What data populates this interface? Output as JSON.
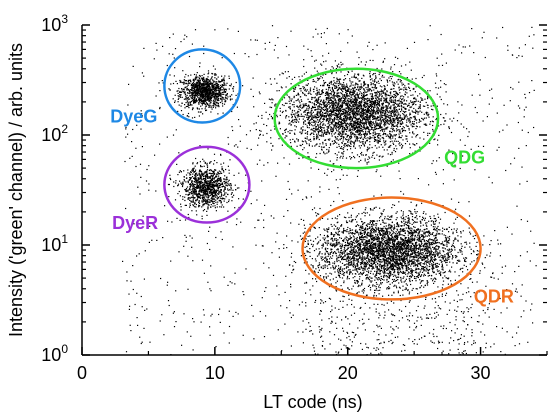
{
  "chart_data": {
    "type": "scatter",
    "xlabel": "LT code (ns)",
    "ylabel": "Intensity ('green' channel) / arb. units",
    "xlim": [
      0,
      35
    ],
    "ylim": [
      1,
      1000
    ],
    "yscale": "log",
    "x_ticks": [
      0,
      10,
      20,
      30
    ],
    "x_tick_labels": [
      "0",
      "10",
      "20",
      "30"
    ],
    "y_ticks": [
      1,
      10,
      100,
      1000
    ],
    "y_tick_mantissa": "10",
    "y_tick_exponents": [
      "0",
      "1",
      "2",
      "3"
    ],
    "point_color": "#000000",
    "grid": false,
    "clusters": [
      {
        "name": "DyeG",
        "center_x": 9.2,
        "center_y": 250,
        "spread_x": 0.9,
        "spread_y_log": 0.07,
        "color": "#1e88e5",
        "ellipse": {
          "cx": 9.0,
          "cy": 250,
          "x_range": [
            6.2,
            11.9
          ],
          "y_range": [
            130,
            600
          ]
        }
      },
      {
        "name": "QDG",
        "center_x": 20.5,
        "center_y": 160,
        "spread_x": 2.6,
        "spread_y_log": 0.17,
        "color": "#33dd33",
        "ellipse": {
          "cx": 20.6,
          "cy": 165,
          "x_range": [
            14.5,
            26.8
          ],
          "y_range": [
            50,
            400
          ]
        }
      },
      {
        "name": "DyeR",
        "center_x": 9.3,
        "center_y": 34,
        "spread_x": 0.9,
        "spread_y_log": 0.09,
        "color": "#9b30d9",
        "ellipse": {
          "cx": 9.3,
          "cy": 36,
          "x_range": [
            6.2,
            12.6
          ],
          "y_range": [
            16,
            78
          ]
        }
      },
      {
        "name": "QDR",
        "center_x": 23.0,
        "center_y": 9,
        "spread_x": 2.6,
        "spread_y_log": 0.15,
        "color": "#f07020",
        "ellipse": {
          "cx": 23.6,
          "cy": 9.5,
          "x_range": [
            16.6,
            30.0
          ],
          "y_range": [
            3.2,
            27
          ]
        }
      }
    ],
    "labels": [
      {
        "text": "DyeG",
        "x": 3.9,
        "y": 130,
        "color": "#1e88e5"
      },
      {
        "text": "QDG",
        "x": 28.8,
        "y": 55,
        "color": "#33dd33"
      },
      {
        "text": "DyeR",
        "x": 4.0,
        "y": 14,
        "color": "#9b30d9"
      },
      {
        "text": "QDR",
        "x": 31.0,
        "y": 3.0,
        "color": "#f07020"
      }
    ]
  }
}
